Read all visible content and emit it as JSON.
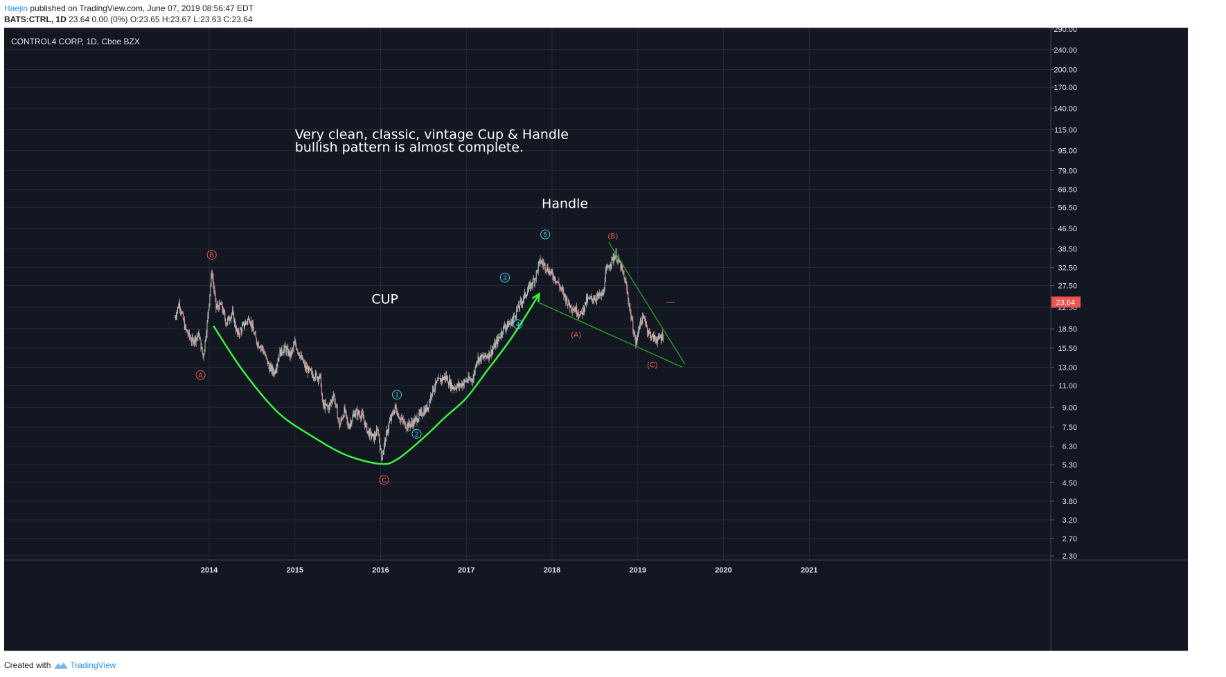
{
  "header": {
    "author": "Haejin",
    "published": "published on TradingView.com, June 07, 2019 08:56:47 EDT",
    "symbol_line": "BATS:CTRL, 1D",
    "quote_line": "23.64 0.00 (0%) O:23.65 H:23.67 L:23.63 C:23.64"
  },
  "footer": {
    "created_with": "Created with",
    "brand": "TradingView"
  },
  "colors": {
    "background": "#131722",
    "grid": "#262a36",
    "text": "#e0e3eb",
    "cup_curve": "#3df23d",
    "trendline": "#26a626",
    "red_label": "#ef5350",
    "cyan_label": "#4dd0e1",
    "price_tag": "#ef5350"
  },
  "chart_data": {
    "type": "candlestick",
    "title": "CONTROL4 CORP, 1D, Cboe BZX",
    "y_scale": "log",
    "ylim": [
      2.1,
      300
    ],
    "xlim": [
      2013.0,
      2022.0
    ],
    "grid": true,
    "y_ticks": [
      "290.00",
      "240.00",
      "200.00",
      "170.00",
      "140.00",
      "115.00",
      "95.00",
      "79.00",
      "66.50",
      "56.50",
      "46.50",
      "38.50",
      "32.50",
      "27.50",
      "22.50",
      "18.50",
      "15.50",
      "13.00",
      "11.00",
      "9.00",
      "7.50",
      "6.30",
      "5.30",
      "4.50",
      "3.80",
      "3.20",
      "2.70",
      "2.30"
    ],
    "x_ticks": [
      "2014",
      "2015",
      "2016",
      "2017",
      "2018",
      "2019",
      "2020",
      "2021"
    ],
    "last_price": "23.64",
    "price_path": [
      [
        2013.6,
        20.5
      ],
      [
        2013.65,
        23.5
      ],
      [
        2013.72,
        18.5
      ],
      [
        2013.8,
        16.5
      ],
      [
        2013.88,
        17.5
      ],
      [
        2013.93,
        14.2
      ],
      [
        2013.98,
        20.0
      ],
      [
        2014.03,
        31.5
      ],
      [
        2014.08,
        22.5
      ],
      [
        2014.14,
        23.0
      ],
      [
        2014.2,
        19.5
      ],
      [
        2014.27,
        21.5
      ],
      [
        2014.33,
        17.5
      ],
      [
        2014.4,
        19.0
      ],
      [
        2014.47,
        20.5
      ],
      [
        2014.55,
        16.5
      ],
      [
        2014.62,
        15.5
      ],
      [
        2014.7,
        13.0
      ],
      [
        2014.76,
        12.4
      ],
      [
        2014.82,
        14.8
      ],
      [
        2014.88,
        15.5
      ],
      [
        2014.95,
        14.5
      ],
      [
        2015.0,
        16.2
      ],
      [
        2015.05,
        14.8
      ],
      [
        2015.12,
        13.0
      ],
      [
        2015.2,
        12.2
      ],
      [
        2015.3,
        11.8
      ],
      [
        2015.32,
        9.2
      ],
      [
        2015.4,
        9.0
      ],
      [
        2015.45,
        10.2
      ],
      [
        2015.52,
        7.6
      ],
      [
        2015.58,
        8.8
      ],
      [
        2015.62,
        7.5
      ],
      [
        2015.7,
        8.6
      ],
      [
        2015.78,
        8.4
      ],
      [
        2015.85,
        7.2
      ],
      [
        2015.92,
        6.8
      ],
      [
        2015.97,
        7.3
      ],
      [
        2016.01,
        5.6
      ],
      [
        2016.05,
        6.6
      ],
      [
        2016.1,
        7.8
      ],
      [
        2016.17,
        9.0
      ],
      [
        2016.22,
        8.2
      ],
      [
        2016.3,
        7.6
      ],
      [
        2016.38,
        7.8
      ],
      [
        2016.46,
        8.4
      ],
      [
        2016.55,
        9.0
      ],
      [
        2016.6,
        10.5
      ],
      [
        2016.68,
        11.5
      ],
      [
        2016.76,
        11.9
      ],
      [
        2016.84,
        10.8
      ],
      [
        2016.92,
        11.0
      ],
      [
        2017.0,
        11.5
      ],
      [
        2017.08,
        11.7
      ],
      [
        2017.12,
        14.0
      ],
      [
        2017.2,
        14.2
      ],
      [
        2017.28,
        14.8
      ],
      [
        2017.36,
        16.5
      ],
      [
        2017.44,
        18.8
      ],
      [
        2017.52,
        19.5
      ],
      [
        2017.58,
        21.5
      ],
      [
        2017.65,
        24.0
      ],
      [
        2017.72,
        26.5
      ],
      [
        2017.8,
        29.5
      ],
      [
        2017.86,
        34.5
      ],
      [
        2017.92,
        33.0
      ],
      [
        2017.98,
        31.0
      ],
      [
        2018.05,
        29.0
      ],
      [
        2018.12,
        26.0
      ],
      [
        2018.2,
        23.0
      ],
      [
        2018.28,
        22.0
      ],
      [
        2018.34,
        21.0
      ],
      [
        2018.4,
        24.0
      ],
      [
        2018.48,
        24.5
      ],
      [
        2018.56,
        25.0
      ],
      [
        2018.6,
        25.5
      ],
      [
        2018.62,
        30.5
      ],
      [
        2018.68,
        34.0
      ],
      [
        2018.74,
        36.5
      ],
      [
        2018.8,
        33.0
      ],
      [
        2018.86,
        28.0
      ],
      [
        2018.9,
        23.0
      ],
      [
        2018.94,
        19.0
      ],
      [
        2018.98,
        16.0
      ],
      [
        2019.02,
        19.5
      ],
      [
        2019.08,
        20.5
      ],
      [
        2019.12,
        18.0
      ],
      [
        2019.18,
        17.0
      ],
      [
        2019.24,
        16.8
      ],
      [
        2019.3,
        17.5
      ]
    ],
    "wave_labels": [
      {
        "label": "B",
        "x": 2014.03,
        "y": 36.5,
        "color": "red",
        "circle": true
      },
      {
        "label": "A",
        "x": 2013.9,
        "y": 12.1,
        "color": "red",
        "circle": true
      },
      {
        "label": "C",
        "x": 2016.04,
        "y": 4.62,
        "color": "red",
        "circle": true
      },
      {
        "label": "1",
        "x": 2016.19,
        "y": 10.1,
        "color": "cyan",
        "circle": true
      },
      {
        "label": "2",
        "x": 2016.42,
        "y": 7.05,
        "color": "cyan",
        "circle": true
      },
      {
        "label": "3",
        "x": 2017.45,
        "y": 29.6,
        "color": "cyan",
        "circle": true
      },
      {
        "label": "4",
        "x": 2017.6,
        "y": 19.3,
        "color": "cyan",
        "circle": true
      },
      {
        "label": "5",
        "x": 2017.92,
        "y": 44.0,
        "color": "cyan",
        "circle": true
      },
      {
        "label": "(A)",
        "x": 2018.28,
        "y": 17.5,
        "color": "red",
        "circle": false
      },
      {
        "label": "(B)",
        "x": 2018.71,
        "y": 43.3,
        "color": "red",
        "circle": false
      },
      {
        "label": "(C)",
        "x": 2019.17,
        "y": 13.3,
        "color": "red",
        "circle": false
      }
    ],
    "annotations": [
      {
        "text": "Very clean, classic, vintage Cup & Handle",
        "x": 2015.0,
        "y": 106.0
      },
      {
        "text": "bullish pattern is almost complete.",
        "x": 2015.0,
        "y": 94.0
      },
      {
        "text": "Handle",
        "x": 2018.15,
        "y": 56.0
      },
      {
        "text": "CUP",
        "x": 2016.05,
        "y": 23.3
      }
    ],
    "cup_curve": [
      [
        2014.05,
        19.0
      ],
      [
        2014.4,
        12.5
      ],
      [
        2014.8,
        8.6
      ],
      [
        2015.2,
        6.9
      ],
      [
        2015.6,
        5.8
      ],
      [
        2016.0,
        5.35
      ],
      [
        2016.2,
        5.6
      ],
      [
        2016.5,
        6.8
      ],
      [
        2016.75,
        8.2
      ],
      [
        2017.0,
        9.8
      ],
      [
        2017.25,
        12.7
      ],
      [
        2017.5,
        16.5
      ],
      [
        2017.7,
        21.0
      ],
      [
        2017.85,
        25.5
      ]
    ],
    "trendlines": [
      {
        "points": [
          [
            2017.85,
            23.5
          ],
          [
            2019.52,
            13.0
          ]
        ]
      },
      {
        "points": [
          [
            2018.66,
            41.0
          ],
          [
            2019.55,
            13.4
          ]
        ]
      }
    ]
  }
}
